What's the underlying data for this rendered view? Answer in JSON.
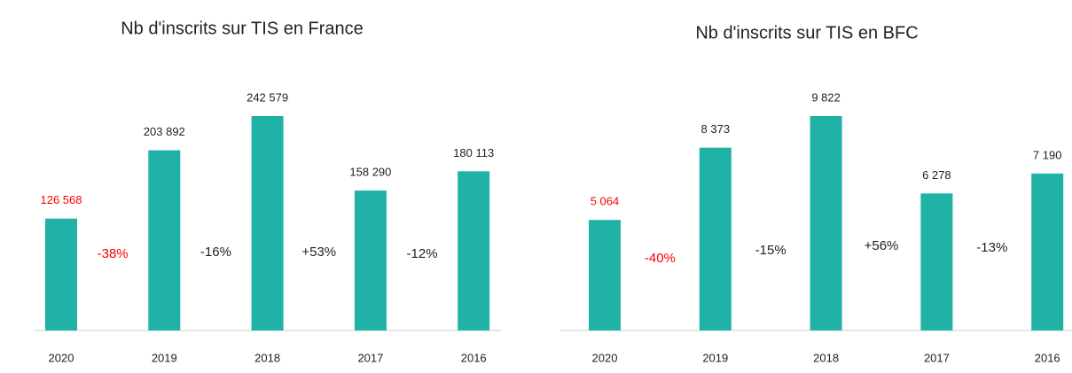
{
  "chart_data": [
    {
      "type": "bar",
      "title": "Nb d'inscrits sur TIS en France",
      "categories": [
        "2020",
        "2019",
        "2018",
        "2017",
        "2016"
      ],
      "values": [
        126568,
        203892,
        242579,
        158290,
        180113
      ],
      "value_labels": [
        "126 568",
        "203 892",
        "242 579",
        "158 290",
        "180 113"
      ],
      "value_label_colors": [
        "#ff0000",
        "#222222",
        "#222222",
        "#222222",
        "#222222"
      ],
      "color": "#20b2a6",
      "annotations": [
        {
          "text": "-38%",
          "color": "#ff0000"
        },
        {
          "text": "-16%",
          "color": "#222222"
        },
        {
          "text": "+53%",
          "color": "#222222"
        },
        {
          "text": "-12%",
          "color": "#222222"
        }
      ]
    },
    {
      "type": "bar",
      "title": "Nb d'inscrits sur TIS en BFC",
      "categories": [
        "2020",
        "2019",
        "2018",
        "2017",
        "2016"
      ],
      "values": [
        5064,
        8373,
        9822,
        6278,
        7190
      ],
      "value_labels": [
        "5 064",
        "8 373",
        "9 822",
        "6 278",
        "7 190"
      ],
      "value_label_colors": [
        "#ff0000",
        "#222222",
        "#222222",
        "#222222",
        "#222222"
      ],
      "color": "#20b2a6",
      "annotations": [
        {
          "text": "-40%",
          "color": "#ff0000"
        },
        {
          "text": "-15%",
          "color": "#222222"
        },
        {
          "text": "+56%",
          "color": "#222222"
        },
        {
          "text": "-13%",
          "color": "#222222"
        }
      ]
    }
  ]
}
